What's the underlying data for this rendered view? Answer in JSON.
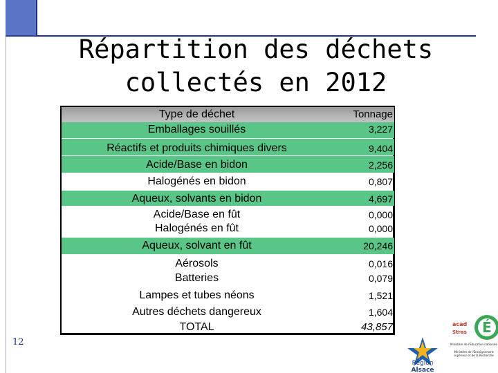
{
  "slide": {
    "title_line1": "Répartition des déchets",
    "title_line2": "collectés en 2012",
    "page_number": "12"
  },
  "table": {
    "headers": {
      "type": "Type de déchet",
      "tonnage": "Tonnage"
    },
    "rows": [
      {
        "label": "Emballages souillés",
        "value": "3,227",
        "green": true
      },
      {
        "label": "Réactifs et produits chimiques divers",
        "value": "9,404",
        "green": true
      },
      {
        "label": "Acide/Base en bidon",
        "value": "2,256",
        "green": true
      },
      {
        "label": "Halogénés en bidon",
        "value": "0,807",
        "green": false
      },
      {
        "label": "Aqueux, solvants en bidon",
        "value": "4,697",
        "green": true
      },
      {
        "label": "Acide/Base en fût",
        "value": "0,000",
        "green": false
      },
      {
        "label": "Halogénés en fût",
        "value": "0,000",
        "green": false
      },
      {
        "label": "Aqueux, solvant en fût",
        "value": "20,246",
        "green": true
      },
      {
        "label": "Aérosols",
        "value": "0,016",
        "green": false
      },
      {
        "label": "Batteries",
        "value": "0,079",
        "green": false
      },
      {
        "label": "Lampes et tubes néons",
        "value": "1,521",
        "green": false
      },
      {
        "label": "Autres déchets dangereux",
        "value": "1,604",
        "green": false
      }
    ],
    "total": {
      "label": "TOTAL",
      "value": "43,857"
    }
  },
  "logos": {
    "academie": "académie Strasbourg",
    "region_line1": "Région",
    "region_line2": "Alsace",
    "ministere1": "Ministère de l'Éducation nationale",
    "ministere2": "Ministère de l'Enseignement supérieur et de la Recherche"
  },
  "colors": {
    "accent_blue": "#1e2f86",
    "square_blue": "#5b74c6",
    "row_green": "#59c587",
    "header_gray": "#a9a9a9"
  }
}
